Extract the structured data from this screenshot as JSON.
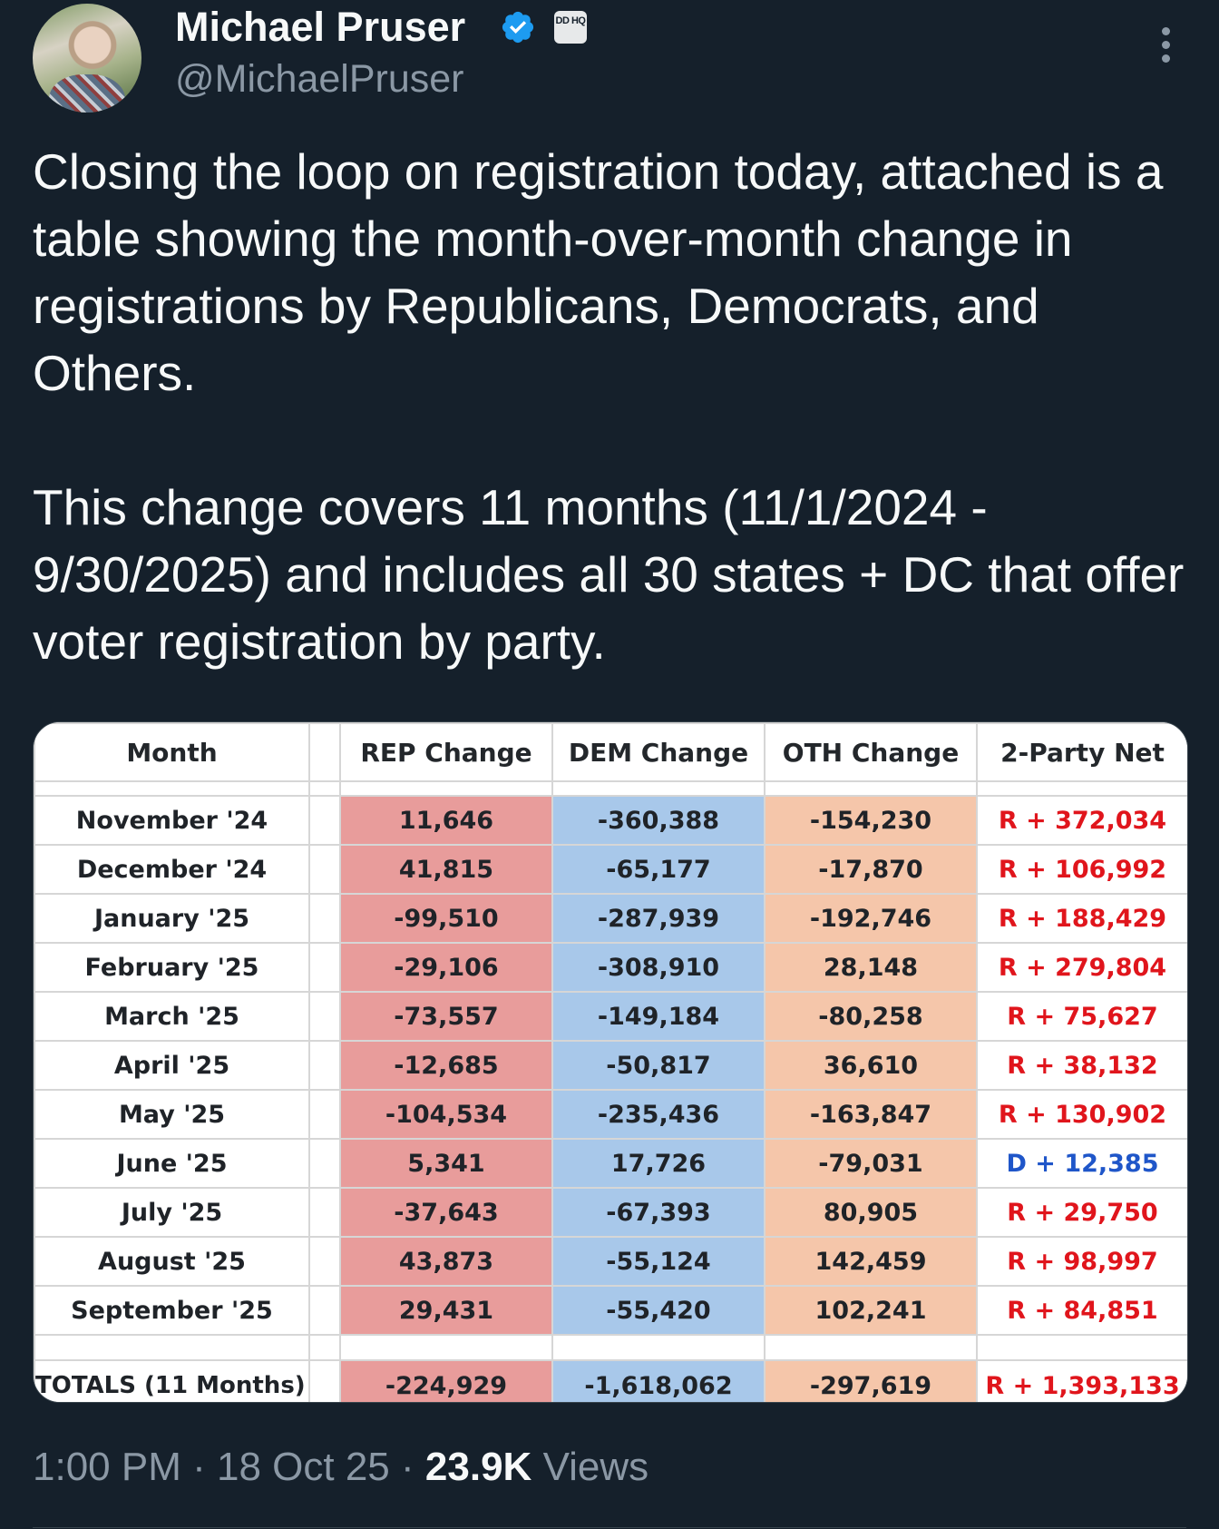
{
  "author": {
    "name": "Michael Pruser",
    "handle": "@MichaelPruser",
    "affiliate_badge": "DD HQ"
  },
  "tweet": {
    "paragraph1": "Closing the loop on registration today, attached is a table showing the month-over-month change in registrations by Republicans, Democrats, and Others.",
    "paragraph2": "This change covers 11 months (11/1/2024 - 9/30/2025) and includes all 30 states + DC that offer voter registration by party."
  },
  "table": {
    "headers": [
      "Month",
      "REP Change",
      "DEM Change",
      "OTH Change",
      "2-Party Net"
    ],
    "rows": [
      {
        "month": "November '24",
        "rep": "11,646",
        "dem": "-360,388",
        "oth": "-154,230",
        "net": "R + 372,034",
        "net_party": "R"
      },
      {
        "month": "December '24",
        "rep": "41,815",
        "dem": "-65,177",
        "oth": "-17,870",
        "net": "R + 106,992",
        "net_party": "R"
      },
      {
        "month": "January '25",
        "rep": "-99,510",
        "dem": "-287,939",
        "oth": "-192,746",
        "net": "R + 188,429",
        "net_party": "R"
      },
      {
        "month": "February '25",
        "rep": "-29,106",
        "dem": "-308,910",
        "oth": "28,148",
        "net": "R + 279,804",
        "net_party": "R"
      },
      {
        "month": "March '25",
        "rep": "-73,557",
        "dem": "-149,184",
        "oth": "-80,258",
        "net": "R + 75,627",
        "net_party": "R"
      },
      {
        "month": "April '25",
        "rep": "-12,685",
        "dem": "-50,817",
        "oth": "36,610",
        "net": "R + 38,132",
        "net_party": "R"
      },
      {
        "month": "May '25",
        "rep": "-104,534",
        "dem": "-235,436",
        "oth": "-163,847",
        "net": "R + 130,902",
        "net_party": "R"
      },
      {
        "month": "June '25",
        "rep": "5,341",
        "dem": "17,726",
        "oth": "-79,031",
        "net": "D + 12,385",
        "net_party": "D"
      },
      {
        "month": "July '25",
        "rep": "-37,643",
        "dem": "-67,393",
        "oth": "80,905",
        "net": "R + 29,750",
        "net_party": "R"
      },
      {
        "month": "August '25",
        "rep": "43,873",
        "dem": "-55,124",
        "oth": "142,459",
        "net": "R + 98,997",
        "net_party": "R"
      },
      {
        "month": "September '25",
        "rep": "29,431",
        "dem": "-55,420",
        "oth": "102,241",
        "net": "R + 84,851",
        "net_party": "R"
      }
    ],
    "totals": {
      "label": "TOTALS (11 Months)",
      "rep": "-224,929",
      "dem": "-1,618,062",
      "oth": "-297,619",
      "net": "R + 1,393,133"
    }
  },
  "meta": {
    "time": "1:00 PM",
    "date": "18 Oct 25",
    "views_count": "23.9K",
    "views_label": "Views"
  },
  "colors": {
    "background": "#15202b",
    "rep_fill": "#e89c9b",
    "dem_fill": "#a8c8ea",
    "oth_fill": "#f5c6aa",
    "r_text": "#e0151c",
    "d_text": "#1f56c9",
    "verified": "#1d9bf0"
  },
  "icons": {
    "verified": "verified-badge-icon",
    "more": "more-options-icon"
  }
}
